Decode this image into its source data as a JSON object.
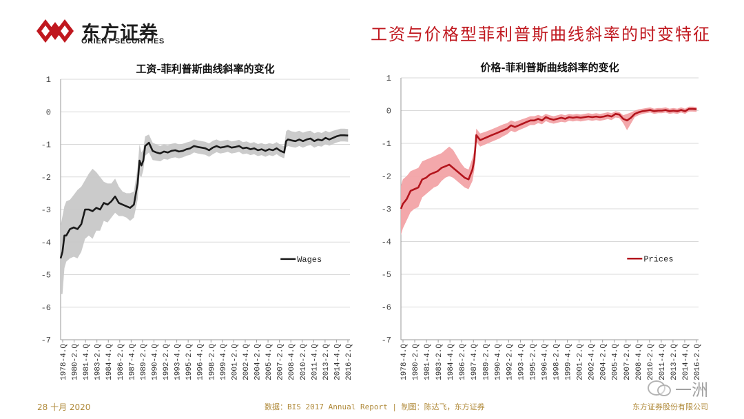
{
  "header": {
    "brand_cn": "东方证券",
    "brand_en": "ORIENT SECURITIES",
    "page_title": "工资与价格型菲利普斯曲线斜率的时变特征"
  },
  "footer": {
    "date": "28 十月 2020",
    "source": "数据：BIS 2017 Annual Report  | 制图：陈达飞，东方证券",
    "company": "东方证券股份有限公司"
  },
  "watermark": {
    "text": "一洲"
  },
  "colors": {
    "brand_red": "#c0181f",
    "wages": "#1a1a1a",
    "wages_band": "#c8c8c8",
    "prices": "#b3141c",
    "prices_band": "#f2a3a6",
    "footer": "#b08a3a"
  },
  "chart_data": [
    {
      "type": "line",
      "title": "工资-菲利普斯曲线斜率的变化",
      "ylim": [
        -7,
        1
      ],
      "yticks": [
        1,
        0,
        -1,
        -2,
        -3,
        -4,
        -5,
        -6,
        -7
      ],
      "xlim": [
        1978.75,
        2017.25
      ],
      "xtick_labels": [
        "1978-4.Q",
        "1980-2.Q",
        "1981-4.Q",
        "1983-2.Q",
        "1984-4.Q",
        "1986-2.Q",
        "1987-4.Q",
        "1989-2.Q",
        "1990-4.Q",
        "1992-2.Q",
        "1993-4.Q",
        "1995-2.Q",
        "1996-4.Q",
        "1998-2.Q",
        "1999-4.Q",
        "2001-2.Q",
        "2002-4.Q",
        "2004-2.Q",
        "2005-4.Q",
        "2007-2.Q",
        "2008-4.Q",
        "2010-2.Q",
        "2011-4.Q",
        "2013-2.Q",
        "2014-4.Q",
        "2016-2.Q"
      ],
      "grid": true,
      "legend_position": "right-middle",
      "series": [
        {
          "name": "Wages",
          "color": "#1a1a1a",
          "x": [
            1978.75,
            1979.0,
            1979.25,
            1979.5,
            1980.0,
            1980.5,
            1981.0,
            1981.5,
            1982.0,
            1982.5,
            1983.0,
            1983.5,
            1984.0,
            1984.5,
            1985.0,
            1985.5,
            1986.0,
            1986.5,
            1987.0,
            1987.5,
            1988.0,
            1988.5,
            1989.0,
            1989.25,
            1989.5,
            1989.75,
            1990.0,
            1990.5,
            1991.0,
            1991.5,
            1992.0,
            1992.5,
            1993.0,
            1993.5,
            1994.0,
            1994.5,
            1995.0,
            1995.5,
            1996.0,
            1996.5,
            1997.0,
            1997.5,
            1998.0,
            1998.5,
            1999.0,
            1999.5,
            2000.0,
            2000.5,
            2001.0,
            2001.5,
            2002.0,
            2002.5,
            2003.0,
            2003.5,
            2004.0,
            2004.5,
            2005.0,
            2005.5,
            2006.0,
            2006.5,
            2007.0,
            2007.5,
            2008.0,
            2008.5,
            2008.75,
            2009.0,
            2009.5,
            2010.0,
            2010.5,
            2011.0,
            2011.5,
            2012.0,
            2012.5,
            2013.0,
            2013.5,
            2014.0,
            2014.5,
            2015.0,
            2015.5,
            2016.0,
            2016.5,
            2017.0
          ],
          "y": [
            -4.5,
            -4.3,
            -3.8,
            -3.8,
            -3.6,
            -3.55,
            -3.6,
            -3.45,
            -3.0,
            -3.0,
            -3.05,
            -2.95,
            -3.0,
            -2.8,
            -2.85,
            -2.75,
            -2.6,
            -2.8,
            -2.85,
            -2.9,
            -2.95,
            -2.85,
            -2.2,
            -1.5,
            -1.65,
            -1.5,
            -1.05,
            -0.95,
            -1.2,
            -1.25,
            -1.28,
            -1.22,
            -1.25,
            -1.2,
            -1.18,
            -1.22,
            -1.2,
            -1.15,
            -1.12,
            -1.05,
            -1.08,
            -1.1,
            -1.12,
            -1.18,
            -1.1,
            -1.05,
            -1.1,
            -1.08,
            -1.05,
            -1.1,
            -1.08,
            -1.05,
            -1.12,
            -1.1,
            -1.15,
            -1.12,
            -1.18,
            -1.15,
            -1.2,
            -1.15,
            -1.18,
            -1.12,
            -1.2,
            -1.25,
            -0.9,
            -0.85,
            -0.88,
            -0.9,
            -0.85,
            -0.9,
            -0.85,
            -0.82,
            -0.9,
            -0.85,
            -0.88,
            -0.8,
            -0.85,
            -0.8,
            -0.75,
            -0.72,
            -0.72,
            -0.73
          ],
          "lower": [
            -5.6,
            -5.6,
            -4.8,
            -4.6,
            -4.5,
            -4.45,
            -4.5,
            -4.3,
            -3.9,
            -3.8,
            -3.9,
            -3.65,
            -3.65,
            -3.35,
            -3.4,
            -3.25,
            -3.1,
            -3.2,
            -3.2,
            -3.25,
            -3.35,
            -3.25,
            -2.7,
            -1.95,
            -2.0,
            -1.8,
            -1.35,
            -1.25,
            -1.48,
            -1.5,
            -1.52,
            -1.45,
            -1.47,
            -1.42,
            -1.4,
            -1.43,
            -1.4,
            -1.35,
            -1.32,
            -1.25,
            -1.28,
            -1.3,
            -1.32,
            -1.38,
            -1.3,
            -1.24,
            -1.28,
            -1.26,
            -1.23,
            -1.28,
            -1.26,
            -1.23,
            -1.3,
            -1.28,
            -1.33,
            -1.3,
            -1.36,
            -1.33,
            -1.38,
            -1.33,
            -1.36,
            -1.3,
            -1.38,
            -1.43,
            -1.1,
            -1.05,
            -1.08,
            -1.1,
            -1.05,
            -1.1,
            -1.05,
            -1.02,
            -1.1,
            -1.05,
            -1.07,
            -0.99,
            -1.04,
            -0.99,
            -0.94,
            -0.91,
            -0.91,
            -0.92
          ],
          "upper": [
            -3.5,
            -3.2,
            -2.9,
            -2.75,
            -2.7,
            -2.55,
            -2.4,
            -2.3,
            -2.1,
            -1.9,
            -1.75,
            -1.85,
            -2.0,
            -2.15,
            -2.2,
            -2.2,
            -2.05,
            -2.3,
            -2.45,
            -2.5,
            -2.5,
            -2.45,
            -1.7,
            -1.0,
            -1.25,
            -1.15,
            -0.75,
            -0.7,
            -0.95,
            -1.0,
            -1.05,
            -1.0,
            -1.03,
            -0.98,
            -0.96,
            -1.0,
            -0.98,
            -0.94,
            -0.91,
            -0.85,
            -0.88,
            -0.9,
            -0.92,
            -0.97,
            -0.89,
            -0.85,
            -0.9,
            -0.88,
            -0.86,
            -0.91,
            -0.89,
            -0.86,
            -0.93,
            -0.91,
            -0.96,
            -0.93,
            -0.99,
            -0.96,
            -1.01,
            -0.96,
            -0.99,
            -0.93,
            -1.01,
            -1.06,
            -0.6,
            -0.55,
            -0.6,
            -0.62,
            -0.58,
            -0.64,
            -0.6,
            -0.58,
            -0.66,
            -0.62,
            -0.65,
            -0.58,
            -0.63,
            -0.58,
            -0.55,
            -0.52,
            -0.52,
            -0.53
          ]
        }
      ]
    },
    {
      "type": "line",
      "title": "价格-菲利普斯曲线斜率的变化",
      "ylim": [
        -7,
        1
      ],
      "yticks": [
        1,
        0,
        -1,
        -2,
        -3,
        -4,
        -5,
        -6,
        -7
      ],
      "xlim": [
        1978.75,
        2017.25
      ],
      "xtick_labels": [
        "1978-4.Q",
        "1980-2.Q",
        "1981-4.Q",
        "1983-2.Q",
        "1984-4.Q",
        "1986-2.Q",
        "1987-4.Q",
        "1989-2.Q",
        "1990-4.Q",
        "1992-2.Q",
        "1993-4.Q",
        "1995-2.Q",
        "1996-4.Q",
        "1998-2.Q",
        "1999-4.Q",
        "2001-2.Q",
        "2002-4.Q",
        "2004-2.Q",
        "2005-4.Q",
        "2007-2.Q",
        "2008-4.Q",
        "2010-2.Q",
        "2011-4.Q",
        "2013-2.Q",
        "2014-4.Q",
        "2016-2.Q"
      ],
      "grid": true,
      "legend_position": "right-middle",
      "series": [
        {
          "name": "Prices",
          "color": "#b3141c",
          "x": [
            1978.75,
            1979.0,
            1979.5,
            1980.0,
            1980.5,
            1981.0,
            1981.5,
            1982.0,
            1982.5,
            1983.0,
            1983.5,
            1984.0,
            1984.5,
            1985.0,
            1985.5,
            1986.0,
            1986.5,
            1987.0,
            1987.5,
            1988.0,
            1988.25,
            1988.5,
            1989.0,
            1989.5,
            1990.0,
            1990.5,
            1991.0,
            1991.5,
            1992.0,
            1992.5,
            1993.0,
            1993.5,
            1994.0,
            1994.5,
            1995.0,
            1995.5,
            1996.0,
            1996.5,
            1997.0,
            1997.5,
            1998.0,
            1998.5,
            1999.0,
            1999.5,
            2000.0,
            2000.5,
            2001.0,
            2001.5,
            2002.0,
            2002.5,
            2003.0,
            2003.5,
            2004.0,
            2004.5,
            2005.0,
            2005.5,
            2006.0,
            2006.5,
            2007.0,
            2007.5,
            2008.0,
            2008.5,
            2009.0,
            2009.5,
            2010.0,
            2010.5,
            2011.0,
            2011.5,
            2012.0,
            2012.5,
            2013.0,
            2013.5,
            2014.0,
            2014.5,
            2015.0,
            2015.5,
            2016.0,
            2016.5,
            2017.0
          ],
          "y": [
            -3.0,
            -2.85,
            -2.7,
            -2.45,
            -2.4,
            -2.35,
            -2.1,
            -2.05,
            -1.95,
            -1.9,
            -1.85,
            -1.75,
            -1.7,
            -1.65,
            -1.75,
            -1.85,
            -1.95,
            -2.05,
            -2.1,
            -1.8,
            -1.5,
            -0.75,
            -0.9,
            -0.85,
            -0.8,
            -0.75,
            -0.7,
            -0.65,
            -0.6,
            -0.55,
            -0.45,
            -0.5,
            -0.45,
            -0.4,
            -0.35,
            -0.3,
            -0.3,
            -0.25,
            -0.3,
            -0.2,
            -0.25,
            -0.28,
            -0.25,
            -0.22,
            -0.25,
            -0.2,
            -0.22,
            -0.2,
            -0.22,
            -0.2,
            -0.18,
            -0.2,
            -0.18,
            -0.2,
            -0.18,
            -0.15,
            -0.18,
            -0.1,
            -0.12,
            -0.25,
            -0.3,
            -0.22,
            -0.1,
            -0.05,
            -0.02,
            0.0,
            0.02,
            -0.02,
            0.0,
            0.0,
            0.02,
            -0.02,
            0.0,
            -0.02,
            0.02,
            -0.02,
            0.05,
            0.05,
            0.04
          ],
          "lower": [
            -3.8,
            -3.6,
            -3.35,
            -3.1,
            -3.0,
            -2.95,
            -2.65,
            -2.55,
            -2.45,
            -2.35,
            -2.3,
            -2.15,
            -2.05,
            -2.0,
            -2.05,
            -2.15,
            -2.25,
            -2.35,
            -2.4,
            -2.15,
            -1.8,
            -0.95,
            -1.1,
            -1.05,
            -1.0,
            -0.95,
            -0.9,
            -0.85,
            -0.78,
            -0.72,
            -0.62,
            -0.66,
            -0.6,
            -0.55,
            -0.5,
            -0.44,
            -0.44,
            -0.38,
            -0.42,
            -0.32,
            -0.37,
            -0.4,
            -0.37,
            -0.34,
            -0.36,
            -0.31,
            -0.33,
            -0.31,
            -0.33,
            -0.31,
            -0.29,
            -0.31,
            -0.29,
            -0.31,
            -0.29,
            -0.26,
            -0.29,
            -0.21,
            -0.23,
            -0.38,
            -0.6,
            -0.4,
            -0.2,
            -0.14,
            -0.1,
            -0.08,
            -0.06,
            -0.1,
            -0.08,
            -0.08,
            -0.06,
            -0.1,
            -0.08,
            -0.1,
            -0.06,
            -0.1,
            -0.03,
            -0.03,
            -0.04
          ],
          "upper": [
            -2.3,
            -2.1,
            -2.0,
            -1.85,
            -1.8,
            -1.75,
            -1.55,
            -1.5,
            -1.45,
            -1.4,
            -1.35,
            -1.3,
            -1.2,
            -1.1,
            -1.2,
            -1.4,
            -1.6,
            -1.75,
            -1.8,
            -1.45,
            -1.2,
            -0.55,
            -0.7,
            -0.66,
            -0.62,
            -0.57,
            -0.52,
            -0.47,
            -0.42,
            -0.38,
            -0.3,
            -0.34,
            -0.3,
            -0.26,
            -0.22,
            -0.17,
            -0.17,
            -0.13,
            -0.17,
            -0.1,
            -0.14,
            -0.17,
            -0.14,
            -0.11,
            -0.14,
            -0.1,
            -0.12,
            -0.1,
            -0.12,
            -0.1,
            -0.08,
            -0.1,
            -0.08,
            -0.1,
            -0.08,
            -0.05,
            -0.08,
            -0.02,
            -0.04,
            -0.14,
            -0.1,
            -0.06,
            0.0,
            0.04,
            0.06,
            0.08,
            0.1,
            0.06,
            0.08,
            0.08,
            0.1,
            0.06,
            0.08,
            0.06,
            0.1,
            0.06,
            0.12,
            0.12,
            0.11
          ]
        }
      ]
    }
  ]
}
